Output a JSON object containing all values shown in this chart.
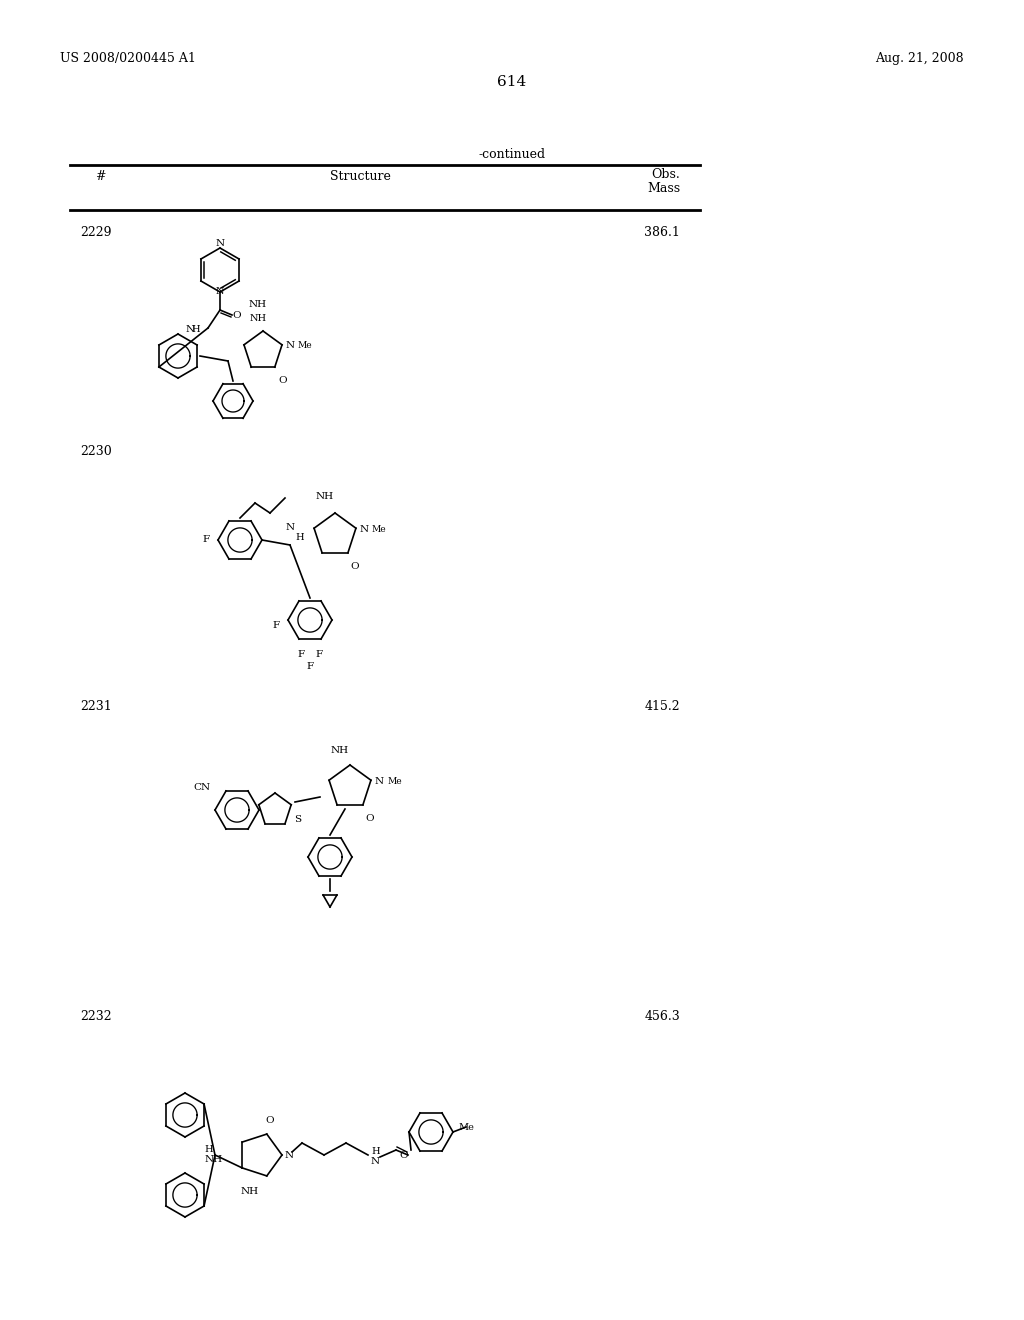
{
  "page_left_text": "US 2008/0200445 A1",
  "page_right_text": "Aug. 21, 2008",
  "page_number": "614",
  "continued_text": "-continued",
  "table_header_col1": "#",
  "table_header_col2": "Structure",
  "table_header_col3": "Obs.\nMass",
  "compounds": [
    {
      "id": "2229",
      "mass": "386.1"
    },
    {
      "id": "2230",
      "mass": ""
    },
    {
      "id": "2231",
      "mass": "415.2"
    },
    {
      "id": "2232",
      "mass": "456.3"
    }
  ],
  "background_color": "#ffffff",
  "text_color": "#000000",
  "line_color": "#000000",
  "font_size_header": 9,
  "font_size_body": 9,
  "font_size_page": 9,
  "font_size_number": 11
}
